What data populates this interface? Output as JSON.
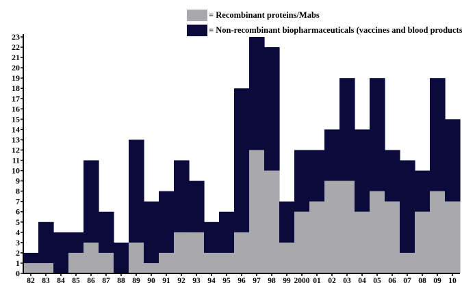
{
  "chart_data": {
    "type": "bar",
    "stacked": true,
    "categories": [
      "82",
      "83",
      "84",
      "85",
      "86",
      "87",
      "88",
      "89",
      "90",
      "91",
      "92",
      "93",
      "94",
      "95",
      "96",
      "97",
      "98",
      "99",
      "2000",
      "01",
      "02",
      "03",
      "04",
      "05",
      "06",
      "07",
      "08",
      "09",
      "10"
    ],
    "series": [
      {
        "name": "= Recombinant proteins/Mabs",
        "color": "#a9a9ad",
        "values": [
          1,
          1,
          0,
          2,
          3,
          2,
          0,
          3,
          1,
          2,
          4,
          4,
          2,
          2,
          4,
          12,
          10,
          3,
          6,
          7,
          9,
          9,
          6,
          8,
          7,
          2,
          6,
          8,
          7
        ]
      },
      {
        "name": "= Non-recombinant biopharmaceuticals (vaccines and blood products)",
        "color": "#0a0a3c",
        "values": [
          1,
          4,
          4,
          2,
          8,
          4,
          3,
          10,
          6,
          6,
          7,
          5,
          3,
          4,
          14,
          11,
          12,
          4,
          6,
          5,
          5,
          10,
          8,
          11,
          5,
          9,
          4,
          11,
          8
        ]
      }
    ],
    "yticks": [
      "0",
      "1",
      "2",
      "3",
      "4",
      "5",
      "6",
      "7",
      "8",
      "9",
      "10",
      "11",
      "12",
      "13",
      "14",
      "15",
      "16",
      "17",
      "18",
      "19",
      "20",
      "21",
      "22",
      "23"
    ],
    "ylim": [
      0,
      23
    ],
    "title": "",
    "xlabel": "",
    "ylabel": "",
    "legend": "top-right"
  }
}
